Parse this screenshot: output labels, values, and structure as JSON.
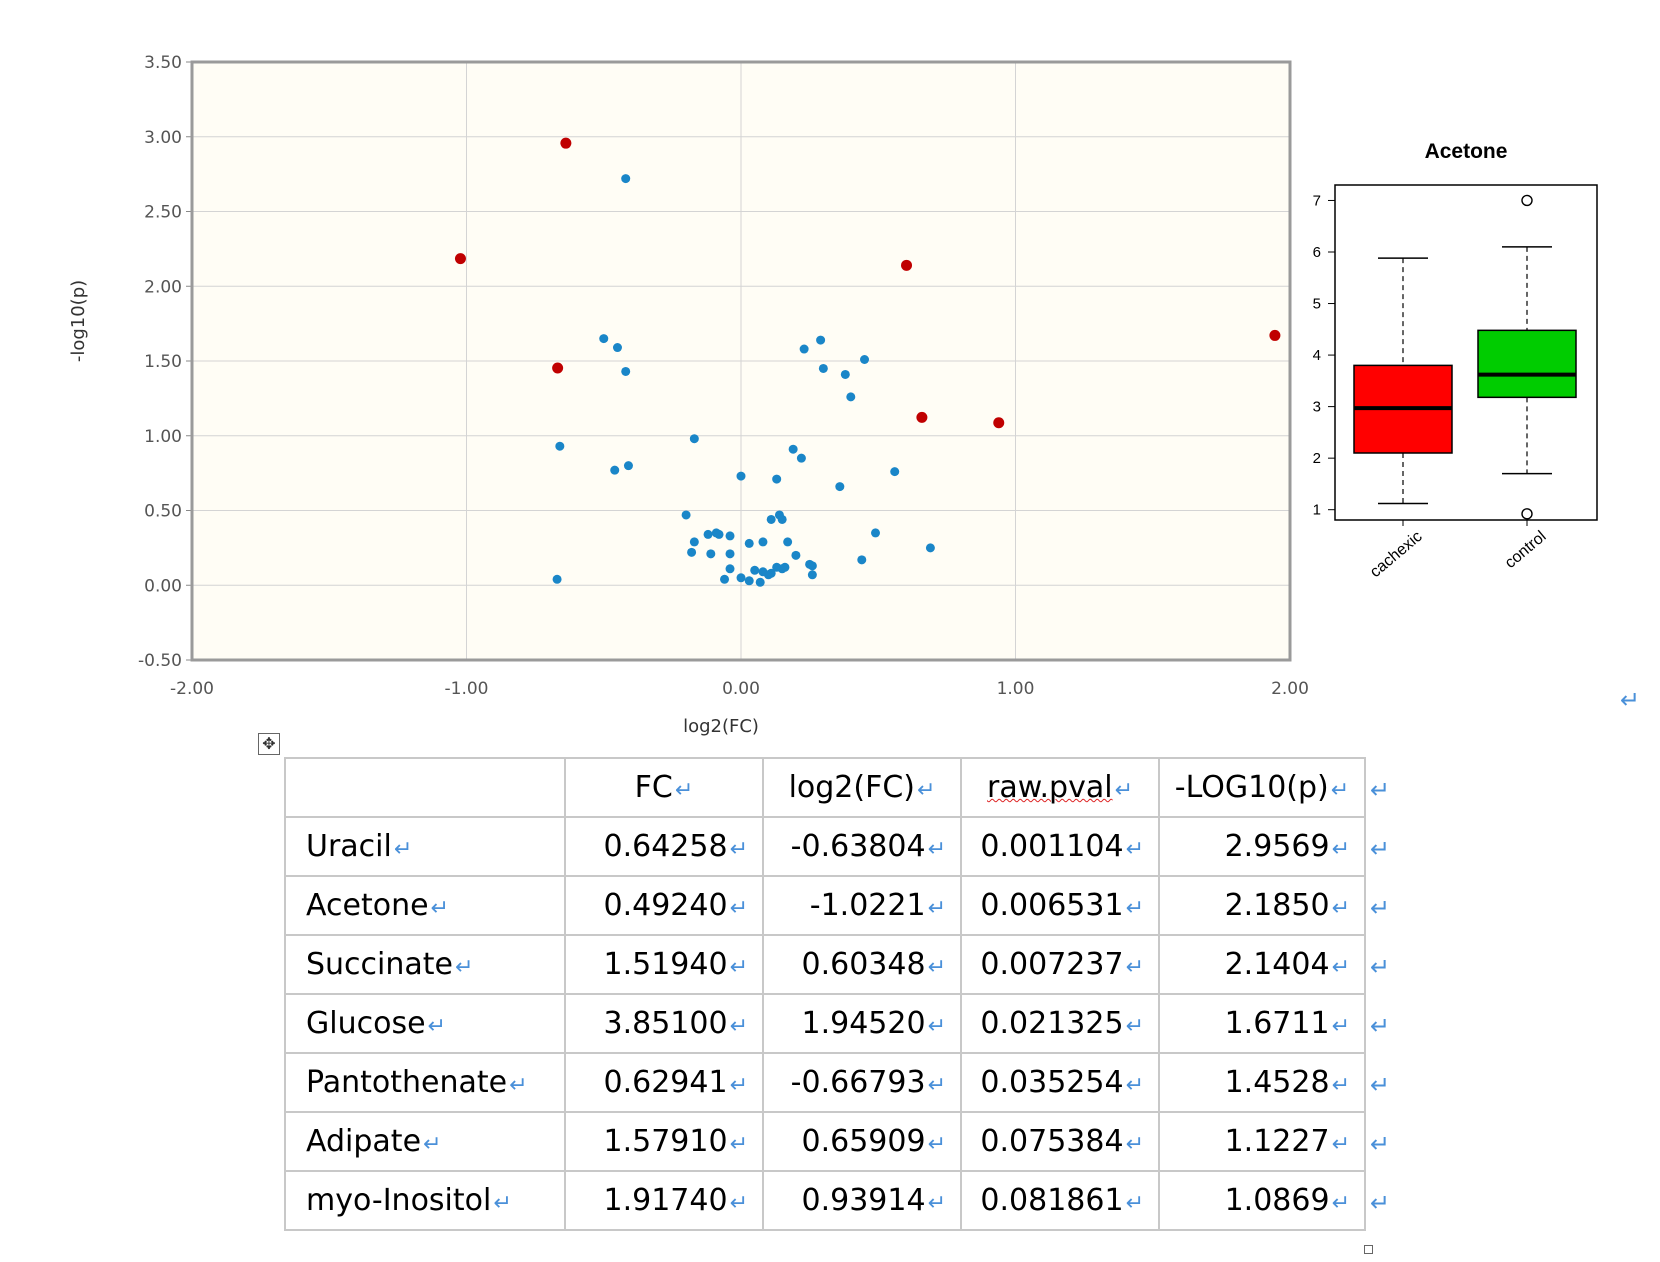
{
  "chart_data": [
    {
      "type": "scatter",
      "title": "",
      "xlabel": "log2(FC)",
      "ylabel": "-log10(p)",
      "xlim": [
        -2.0,
        2.0
      ],
      "ylim": [
        -0.5,
        3.5
      ],
      "xticks": [
        "-2.00",
        "-1.00",
        "0.00",
        "1.00",
        "2.00"
      ],
      "yticks": [
        "-0.50",
        "0.00",
        "0.50",
        "1.00",
        "1.50",
        "2.00",
        "2.50",
        "3.00",
        "3.50"
      ],
      "grid": true,
      "colors": {
        "significant": "#c00000",
        "other": "#1a86c8",
        "background": "#fffdf5"
      },
      "series": [
        {
          "color": "#c00000",
          "points": [
            [
              -0.638,
              2.957
            ],
            [
              -1.022,
              2.185
            ],
            [
              0.603,
              2.14
            ],
            [
              1.945,
              1.671
            ],
            [
              -0.668,
              1.453
            ],
            [
              0.659,
              1.123
            ],
            [
              0.939,
              1.087
            ]
          ]
        },
        {
          "color": "#1a86c8",
          "points": [
            [
              -0.42,
              2.72
            ],
            [
              -0.5,
              1.65
            ],
            [
              -0.45,
              1.59
            ],
            [
              -0.42,
              1.43
            ],
            [
              0.29,
              1.64
            ],
            [
              0.23,
              1.58
            ],
            [
              0.3,
              1.45
            ],
            [
              0.38,
              1.41
            ],
            [
              0.45,
              1.51
            ],
            [
              0.4,
              1.26
            ],
            [
              -0.66,
              0.93
            ],
            [
              -0.17,
              0.98
            ],
            [
              0.19,
              0.91
            ],
            [
              0.22,
              0.85
            ],
            [
              -0.46,
              0.77
            ],
            [
              -0.41,
              0.8
            ],
            [
              0.0,
              0.73
            ],
            [
              0.13,
              0.71
            ],
            [
              0.36,
              0.66
            ],
            [
              0.56,
              0.76
            ],
            [
              -0.2,
              0.47
            ],
            [
              0.11,
              0.44
            ],
            [
              0.14,
              0.47
            ],
            [
              0.15,
              0.44
            ],
            [
              -0.12,
              0.34
            ],
            [
              -0.09,
              0.35
            ],
            [
              -0.08,
              0.34
            ],
            [
              -0.04,
              0.33
            ],
            [
              -0.17,
              0.29
            ],
            [
              0.03,
              0.28
            ],
            [
              0.08,
              0.29
            ],
            [
              0.17,
              0.29
            ],
            [
              0.49,
              0.35
            ],
            [
              0.69,
              0.25
            ],
            [
              -0.18,
              0.22
            ],
            [
              -0.11,
              0.21
            ],
            [
              -0.04,
              0.21
            ],
            [
              0.2,
              0.2
            ],
            [
              0.25,
              0.14
            ],
            [
              0.26,
              0.13
            ],
            [
              0.44,
              0.17
            ],
            [
              -0.04,
              0.11
            ],
            [
              0.05,
              0.1
            ],
            [
              0.08,
              0.09
            ],
            [
              0.11,
              0.08
            ],
            [
              0.13,
              0.12
            ],
            [
              0.15,
              0.11
            ],
            [
              0.16,
              0.12
            ],
            [
              -0.06,
              0.04
            ],
            [
              0.0,
              0.05
            ],
            [
              0.03,
              0.03
            ],
            [
              0.07,
              0.02
            ],
            [
              0.1,
              0.07
            ],
            [
              0.26,
              0.07
            ],
            [
              -0.67,
              0.04
            ]
          ]
        }
      ]
    },
    {
      "type": "box",
      "title": "Acetone",
      "categories": [
        "cachexic",
        "control"
      ],
      "ylim": [
        0.8,
        7.3
      ],
      "yticks": [
        "1",
        "2",
        "3",
        "4",
        "5",
        "6",
        "7"
      ],
      "colors": [
        "#ff0000",
        "#00cc00"
      ],
      "boxes": [
        {
          "whisker_low": 1.12,
          "q1": 2.1,
          "median": 2.97,
          "q3": 3.8,
          "whisker_high": 5.88,
          "outliers": []
        },
        {
          "whisker_low": 1.7,
          "q1": 3.18,
          "median": 3.62,
          "q3": 4.48,
          "whisker_high": 6.1,
          "outliers": [
            7.0,
            0.92
          ]
        }
      ]
    }
  ],
  "table": {
    "headers": [
      "",
      "FC",
      "log2(FC)",
      "raw.pval",
      "-LOG10(p)"
    ],
    "rows": [
      {
        "name": "Uracil",
        "fc": "0.64258",
        "log2fc": "-0.63804",
        "pval": "0.001104",
        "log10p": "2.9569"
      },
      {
        "name": "Acetone",
        "fc": "0.49240",
        "log2fc": "-1.0221",
        "pval": "0.006531",
        "log10p": "2.1850"
      },
      {
        "name": "Succinate",
        "fc": "1.51940",
        "log2fc": "0.60348",
        "pval": "0.007237",
        "log10p": "2.1404"
      },
      {
        "name": "Glucose",
        "fc": "3.85100",
        "log2fc": "1.94520",
        "pval": "0.021325",
        "log10p": "1.6711"
      },
      {
        "name": "Pantothenate",
        "fc": "0.62941",
        "log2fc": "-0.66793",
        "pval": "0.035254",
        "log10p": "1.4528"
      },
      {
        "name": "Adipate",
        "fc": "1.57910",
        "log2fc": "0.65909",
        "pval": "0.075384",
        "log10p": "1.1227"
      },
      {
        "name": "myo-Inositol",
        "fc": "1.91740",
        "log2fc": "0.93914",
        "pval": "0.081861",
        "log10p": "1.0869"
      }
    ]
  },
  "marks": {
    "paragraph": "↵",
    "move_handle": "⊕"
  }
}
